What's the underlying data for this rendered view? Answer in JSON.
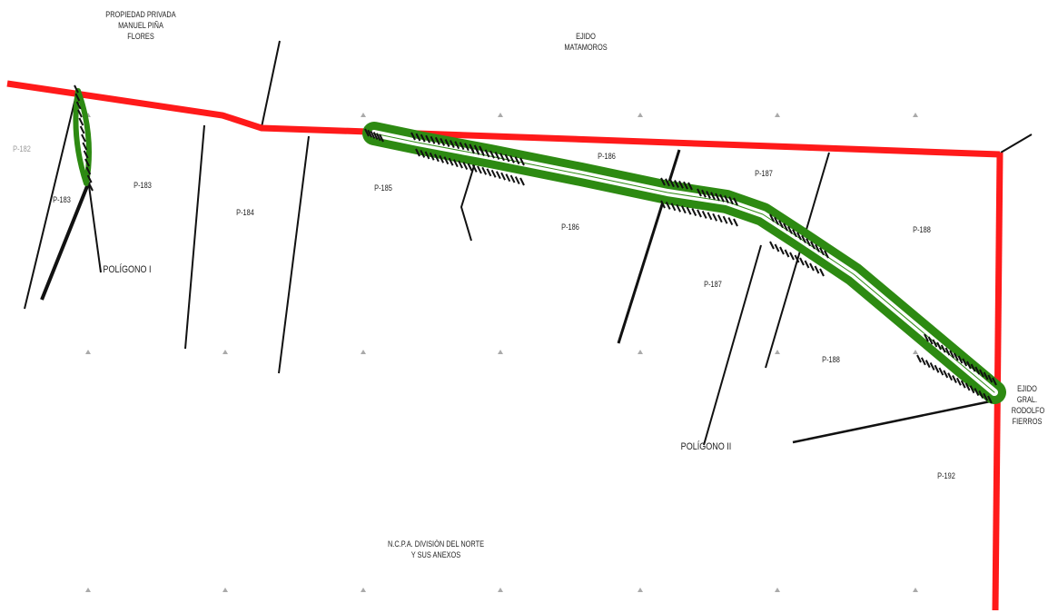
{
  "owners": {
    "top_left": [
      "PROPIEDAD PRIVADA",
      "MANUEL PIÑA",
      "FLORES"
    ],
    "top_center": [
      "EJIDO",
      "MATAMOROS"
    ],
    "right": [
      "EJIDO",
      "GRAL.",
      "RODOLFO",
      "FIERROS"
    ],
    "bottom": [
      "N.C.P.A. DIVISIÓN DEL NORTE",
      "Y SUS ANEXOS"
    ]
  },
  "polygons": {
    "p1": "POLÍGONO I",
    "p2": "POLÍGONO II"
  },
  "parcels": {
    "p182": "P-182",
    "p183a": "P-183",
    "p183b": "P-183",
    "p184": "P-184",
    "p185": "P-185",
    "p186a": "P-186",
    "p186b": "P-186",
    "p187a": "P-187",
    "p187b": "P-187",
    "p188a": "P-188",
    "p188b": "P-188",
    "p192": "P-192"
  },
  "colors": {
    "boundary": "#ff1a1a",
    "road": "#2d8a12",
    "line": "#111111",
    "grid_marker": "#aaaaaa"
  }
}
